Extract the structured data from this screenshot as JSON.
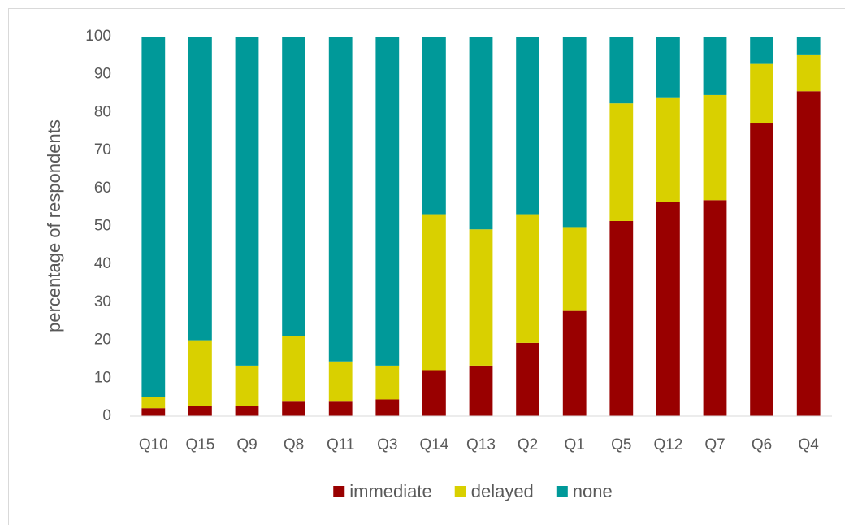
{
  "chart_data": {
    "type": "stacked_bar",
    "y_label": "percentage of respondents",
    "categories": [
      "Q10",
      "Q15",
      "Q9",
      "Q8",
      "Q11",
      "Q3",
      "Q14",
      "Q13",
      "Q2",
      "Q1",
      "Q5",
      "Q12",
      "Q7",
      "Q6",
      "Q4"
    ],
    "series": [
      {
        "name": "immediate",
        "color": "#990000",
        "values": [
          2.1,
          2.7,
          2.7,
          3.8,
          3.8,
          4.4,
          12.1,
          13.3,
          19.3,
          27.7,
          51.4,
          56.4,
          56.9,
          77.3,
          85.6
        ]
      },
      {
        "name": "delayed",
        "color": "#d9d000",
        "values": [
          3,
          17.3,
          10.6,
          17.2,
          10.6,
          8.9,
          41.1,
          35.9,
          33.9,
          22.1,
          31,
          27.6,
          27.7,
          15.5,
          9.5
        ]
      },
      {
        "name": "none",
        "color": "#009999",
        "values": [
          94.9,
          80,
          86.7,
          79,
          85.6,
          86.7,
          46.8,
          50.8,
          46.8,
          50.2,
          17.6,
          16,
          15.4,
          7.2,
          4.9
        ]
      }
    ],
    "ylim": [
      0,
      100
    ],
    "yticks": [
      0,
      10,
      20,
      30,
      40,
      50,
      60,
      70,
      80,
      90,
      100
    ],
    "grid": false,
    "legend": "bottom"
  }
}
